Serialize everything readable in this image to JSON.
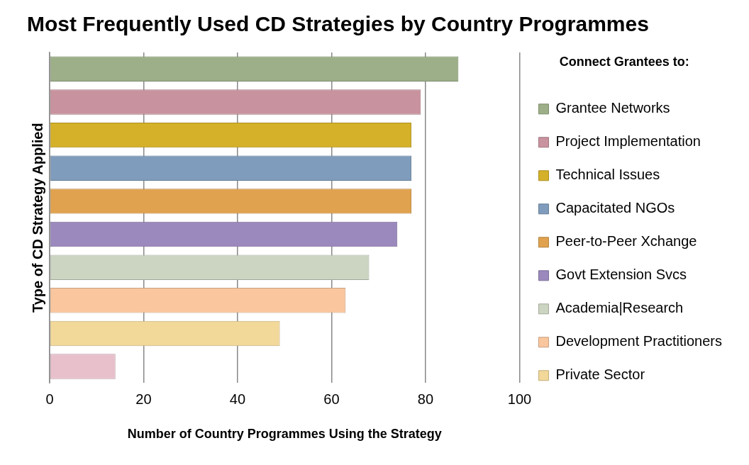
{
  "chart_data": {
    "type": "bar",
    "orientation": "horizontal",
    "stacked": true,
    "title": "Most Frequently Used CD Strategies by Country Programmes",
    "xlabel": "Number of Country Programmes Using the Strategy",
    "ylabel": "Type of CD Strategy Applied",
    "legend_title": "Connect Grantees to:",
    "categories": [
      null,
      null,
      null,
      null,
      null,
      null,
      null,
      null,
      null,
      null
    ],
    "series": [
      {
        "name": "Grantee Networks",
        "color": "#9caf88",
        "values": [
          87,
          null,
          null,
          null,
          null,
          null,
          null,
          null,
          null,
          null
        ]
      },
      {
        "name": "Project Implementation",
        "color": "#c8939e",
        "values": [
          null,
          79,
          null,
          null,
          null,
          null,
          null,
          null,
          null,
          null
        ]
      },
      {
        "name": "Technical Issues",
        "color": "#d4b128",
        "values": [
          null,
          null,
          77,
          null,
          null,
          null,
          null,
          null,
          null,
          null
        ]
      },
      {
        "name": "Capacitated NGOs",
        "color": "#7f9cbc",
        "values": [
          null,
          null,
          null,
          77,
          null,
          null,
          null,
          null,
          null,
          null
        ]
      },
      {
        "name": "Peer-to-Peer Xchange",
        "color": "#e0a24e",
        "values": [
          null,
          null,
          null,
          null,
          77,
          null,
          null,
          null,
          null,
          null
        ]
      },
      {
        "name": "Govt Extension Svcs",
        "color": "#9b89bd",
        "values": [
          null,
          null,
          null,
          null,
          null,
          74,
          null,
          null,
          null,
          null
        ]
      },
      {
        "name": "Academia|Research",
        "color": "#ccd4c2",
        "values": [
          null,
          null,
          null,
          null,
          null,
          null,
          68,
          null,
          null,
          null
        ]
      },
      {
        "name": "Development Practitioners",
        "color": "#f9c69e",
        "values": [
          null,
          null,
          null,
          null,
          null,
          null,
          null,
          63,
          null,
          null
        ]
      },
      {
        "name": "Private Sector",
        "color": "#f2d899",
        "values": [
          null,
          null,
          null,
          null,
          null,
          null,
          null,
          null,
          49,
          null
        ]
      },
      {
        "color": "#e8c0cc",
        "values": [
          null,
          null,
          null,
          null,
          null,
          null,
          null,
          null,
          null,
          14
        ]
      }
    ],
    "xlim": [
      0,
      100
    ],
    "xticks": [
      0,
      20,
      40,
      60,
      80,
      100
    ],
    "grid": "x",
    "legend": "right",
    "tick_labels": "x"
  }
}
